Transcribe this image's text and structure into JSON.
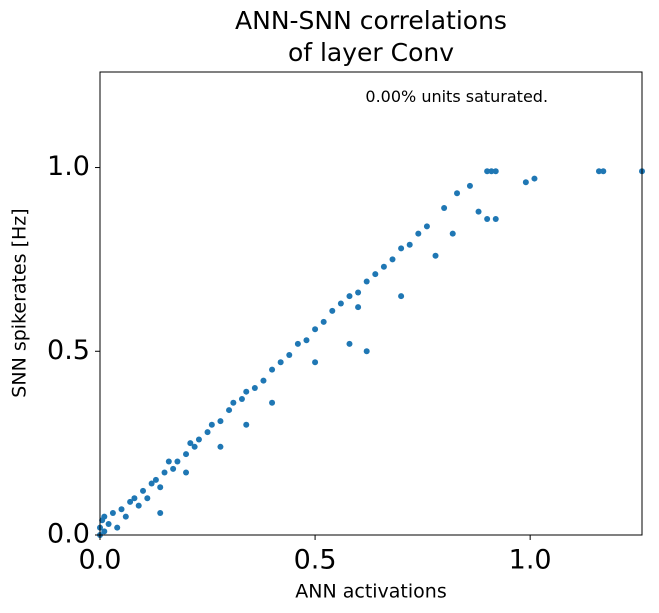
{
  "chart_data": {
    "type": "scatter",
    "title": [
      "ANN-SNN correlations",
      "of layer Conv"
    ],
    "xlabel": "ANN activations",
    "ylabel": "SNN spikerates [Hz]",
    "annotation": {
      "text": "0.00% units saturated.",
      "x": 0.617,
      "y": 1.19
    },
    "color": "#1f77b4",
    "xlim": [
      0,
      1.26
    ],
    "ylim": [
      0,
      1.26
    ],
    "xticks": [
      {
        "value": 0,
        "label": "0.0"
      },
      0.5,
      {
        "value": 1,
        "label": "1.0"
      }
    ],
    "yticks": [
      {
        "value": 0,
        "label": "0.0"
      },
      0.5,
      {
        "value": 1,
        "label": "1.0"
      }
    ],
    "x": [
      0,
      0,
      0.005,
      0.01,
      0.01,
      0.02,
      0.03,
      0.04,
      0.05,
      0.06,
      0.07,
      0.08,
      0.09,
      0.1,
      0.11,
      0.12,
      0.13,
      0.14,
      0.15,
      0.16,
      0.17,
      0.18,
      0.2,
      0.21,
      0.22,
      0.23,
      0.25,
      0.26,
      0.28,
      0.3,
      0.31,
      0.33,
      0.34,
      0.36,
      0.38,
      0.4,
      0.42,
      0.44,
      0.46,
      0.48,
      0.5,
      0.52,
      0.54,
      0.56,
      0.58,
      0.6,
      0.62,
      0.64,
      0.66,
      0.68,
      0.7,
      0.72,
      0.74,
      0.76,
      0.8,
      0.83,
      0.86,
      0.9,
      0.91,
      0.92,
      0.99,
      1.01,
      1.16,
      1.17,
      1.26,
      0.14,
      0.2,
      0.28,
      0.34,
      0.4,
      0.5,
      0.58,
      0.62,
      0.7,
      0.78,
      0.82,
      0.88,
      0.9,
      0.92,
      0.6
    ],
    "values": [
      0,
      0.02,
      0.04,
      0.01,
      0.05,
      0.03,
      0.06,
      0.02,
      0.07,
      0.05,
      0.09,
      0.1,
      0.08,
      0.12,
      0.1,
      0.14,
      0.15,
      0.13,
      0.17,
      0.2,
      0.18,
      0.2,
      0.22,
      0.25,
      0.24,
      0.26,
      0.28,
      0.3,
      0.31,
      0.34,
      0.36,
      0.37,
      0.39,
      0.4,
      0.42,
      0.45,
      0.47,
      0.49,
      0.52,
      0.53,
      0.56,
      0.58,
      0.61,
      0.63,
      0.65,
      0.66,
      0.69,
      0.71,
      0.73,
      0.75,
      0.78,
      0.79,
      0.82,
      0.84,
      0.89,
      0.93,
      0.95,
      0.99,
      0.99,
      0.99,
      0.96,
      0.97,
      0.99,
      0.99,
      0.99,
      0.06,
      0.17,
      0.24,
      0.3,
      0.36,
      0.47,
      0.52,
      0.5,
      0.65,
      0.76,
      0.82,
      0.88,
      0.86,
      0.86,
      0.62
    ]
  }
}
